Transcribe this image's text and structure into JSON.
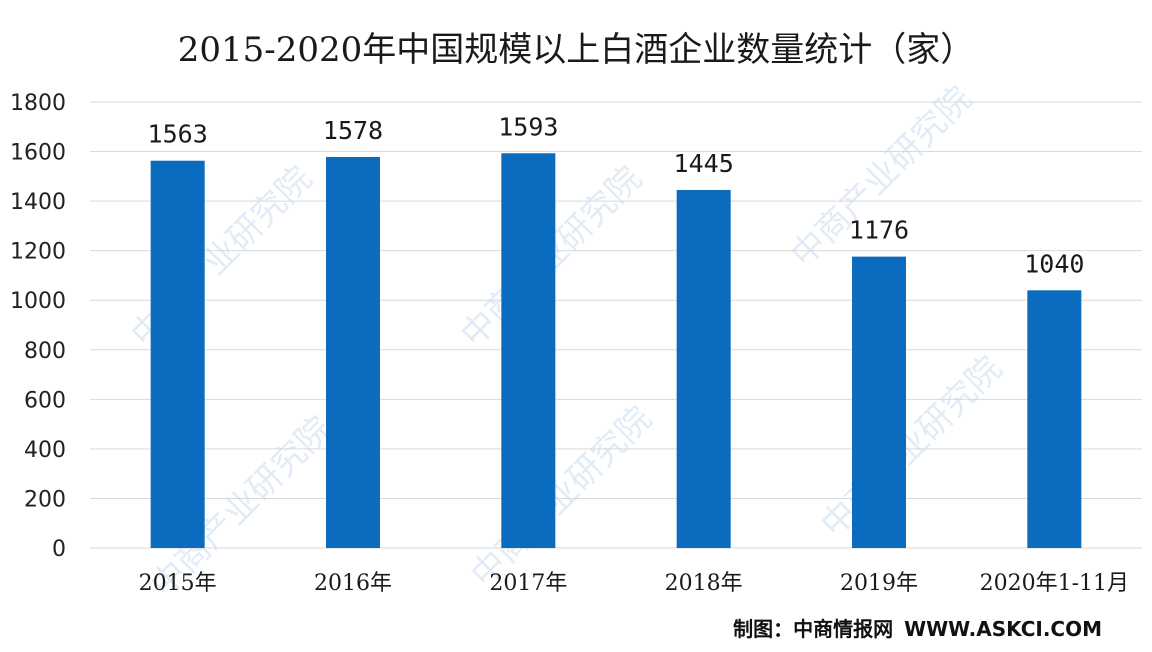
{
  "chart_data": {
    "type": "bar",
    "title": "2015-2020年中国规模以上白酒企业数量统计（家）",
    "categories": [
      "2015年",
      "2016年",
      "2017年",
      "2018年",
      "2019年",
      "2020年1-11月"
    ],
    "values": [
      1563,
      1578,
      1593,
      1445,
      1176,
      1040
    ],
    "ylim": [
      0,
      1800
    ],
    "yticks": [
      0,
      200,
      400,
      600,
      800,
      1000,
      1200,
      1400,
      1600,
      1800
    ],
    "grid": true,
    "bar_color": "#0a6bbf",
    "grid_color": "#d9d9d9"
  },
  "source": {
    "label": "制图：中商情报网",
    "url": "WWW.ASKCI.COM"
  },
  "watermark": {
    "text": "中商产业研究院",
    "color": "#78aadc"
  }
}
